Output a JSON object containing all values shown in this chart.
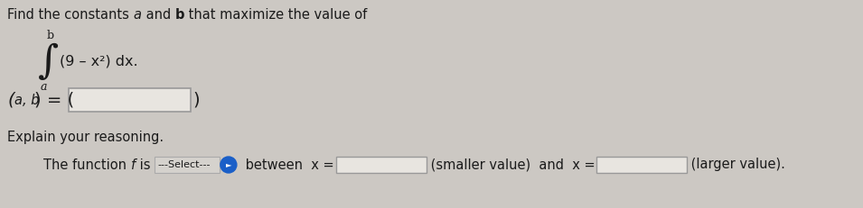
{
  "bg_color": "#ccc8c3",
  "text_color": "#1a1a1a",
  "red_color": "#cc2200",
  "input_box_color": "#e8e5e0",
  "input_box_border": "#999999",
  "select_bg": "#1a5fc8",
  "font_size_main": 10.5,
  "font_size_integral": 32,
  "font_size_small": 8,
  "title": "Find the constants ",
  "title_a": "a",
  "title_mid": " and ",
  "title_b": "b",
  "title_end": " that maximize the value of",
  "integrand": "(9 – x²) dx.",
  "ab_prefix": "(a, b) = (",
  "ab_suffix": ")",
  "explain": "Explain your reasoning.",
  "func_pre": "The function ",
  "func_f": "f",
  "func_is": " is ",
  "func_select": "---Select---",
  "func_between": " between  x =",
  "func_smaller": " (smaller value)  and  x =",
  "func_larger": " (larger value)."
}
